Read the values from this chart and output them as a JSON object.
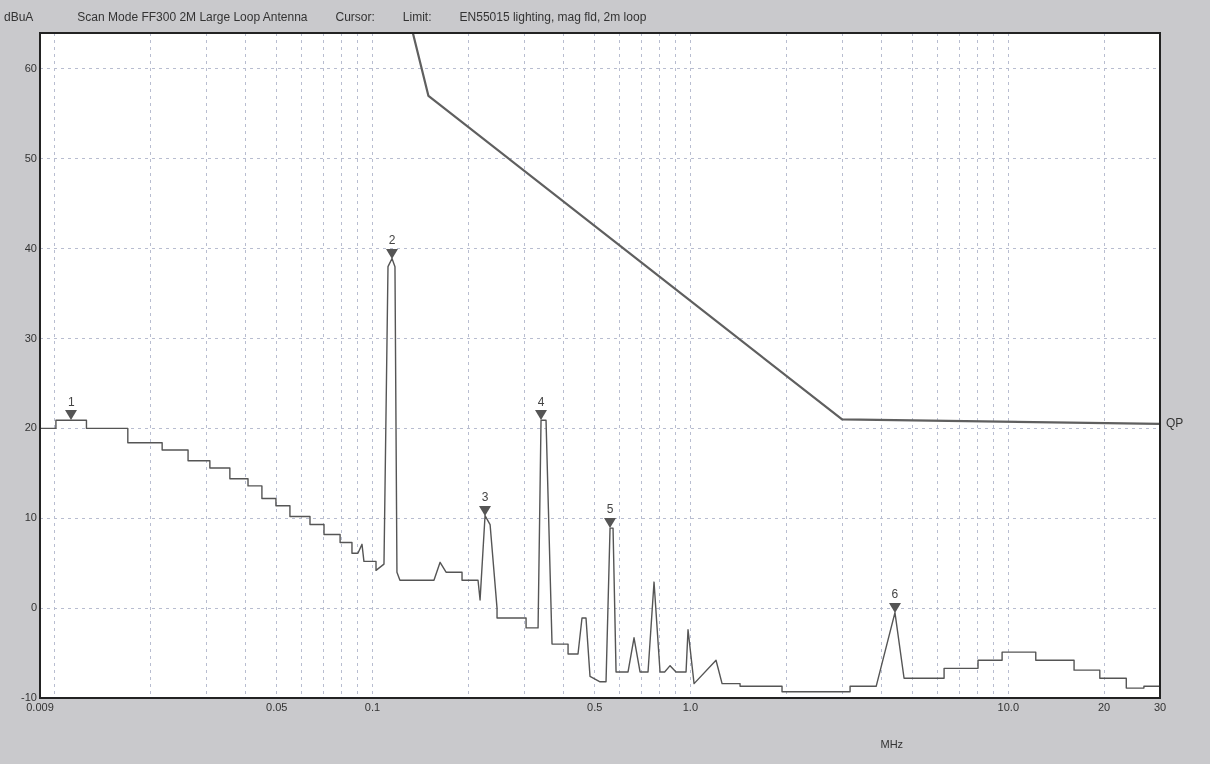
{
  "chart_data": {
    "type": "line",
    "title": "Scan Mode FF300 2M Large Loop Antenna",
    "ylabel": "dBuA",
    "xlabel": "MHz",
    "log": "x",
    "grid": true,
    "legend": false,
    "marker": "none",
    "line_style": "solid",
    "annotations": [
      "Cursor:",
      "Limit:",
      "EN55015 lighting, mag fld, 2m loop",
      {
        "text": "1",
        "x": 0.0113,
        "y": 20.9
      },
      {
        "text": "2",
        "x": 0.1152,
        "y": 38.9
      },
      {
        "text": "3",
        "x": 0.226,
        "y": 10.3
      },
      {
        "text": "4",
        "x": 0.339,
        "y": 20.9
      },
      {
        "text": "5",
        "x": 0.5588,
        "y": 8.9
      },
      {
        "text": "6",
        "x": 4.4,
        "y": -0.5
      }
    ],
    "xlim": [
      0.009,
      30
    ],
    "ylim": [
      -10,
      64
    ],
    "xticks": [
      {
        "value": 0.009,
        "label": "0.009"
      },
      {
        "value": 0.01,
        "label": null
      },
      {
        "value": 0.02,
        "label": null
      },
      {
        "value": 0.03,
        "label": null
      },
      {
        "value": 0.04,
        "label": null
      },
      {
        "value": 0.05,
        "label": "0.05"
      },
      {
        "value": 0.06,
        "label": null
      },
      {
        "value": 0.07,
        "label": null
      },
      {
        "value": 0.08,
        "label": null
      },
      {
        "value": 0.09,
        "label": null
      },
      {
        "value": 0.1,
        "label": "0.1"
      },
      {
        "value": 0.2,
        "label": null
      },
      {
        "value": 0.3,
        "label": null
      },
      {
        "value": 0.4,
        "label": null
      },
      {
        "value": 0.5,
        "label": "0.5"
      },
      {
        "value": 0.6,
        "label": null
      },
      {
        "value": 0.7,
        "label": null
      },
      {
        "value": 0.8,
        "label": null
      },
      {
        "value": 0.9,
        "label": null
      },
      {
        "value": 1,
        "label": "1.0"
      },
      {
        "value": 2,
        "label": null
      },
      {
        "value": 3,
        "label": null
      },
      {
        "value": 4,
        "label": null
      },
      {
        "value": 5,
        "label": null
      },
      {
        "value": 6,
        "label": null
      },
      {
        "value": 7,
        "label": null
      },
      {
        "value": 8,
        "label": null
      },
      {
        "value": 9,
        "label": null
      },
      {
        "value": 10,
        "label": "10.0"
      },
      {
        "value": 20,
        "label": "20"
      },
      {
        "value": 30,
        "label": "30"
      }
    ],
    "yticks": [
      -10,
      0,
      10,
      20,
      30,
      40,
      50,
      60
    ],
    "series": [
      {
        "color": "#555555",
        "x": [
          0.009,
          0.0101,
          0.0101,
          0.0126,
          0.0126,
          0.017,
          0.017,
          0.0218,
          0.0218,
          0.0263,
          0.0263,
          0.0308,
          0.0308,
          0.0356,
          0.0356,
          0.0406,
          0.0406,
          0.0449,
          0.0449,
          0.0497,
          0.0497,
          0.055,
          0.055,
          0.0636,
          0.0636,
          0.0704,
          0.0704,
          0.0791,
          0.0791,
          0.0862,
          0.0862,
          0.09,
          0.0927,
          0.094,
          0.1026,
          0.1026,
          0.1087,
          0.1119,
          0.1152,
          0.1177,
          0.1194,
          0.122,
          0.1561,
          0.1632,
          0.1704,
          0.1913,
          0.1913,
          0.2148,
          0.218,
          0.226,
          0.2344,
          0.2465,
          0.2465,
          0.3042,
          0.3042,
          0.3318,
          0.339,
          0.3515,
          0.3671,
          0.4123,
          0.4123,
          0.4431,
          0.4561,
          0.4695,
          0.4834,
          0.5198,
          0.5428,
          0.5588,
          0.5711,
          0.5837,
          0.6366,
          0.6648,
          0.6944,
          0.7358,
          0.7685,
          0.8027,
          0.83,
          0.8631,
          0.901,
          0.969,
          0.983,
          1.027,
          1.204,
          1.258,
          1.433,
          1.433,
          1.942,
          1.942,
          3.179,
          3.179,
          3.84,
          4.4,
          4.7,
          6.28,
          6.28,
          8.03,
          8.03,
          9.56,
          9.56,
          12.2,
          12.2,
          16.1,
          16.1,
          19.4,
          19.4,
          23.5,
          23.5,
          26.7,
          26.7,
          30
        ],
        "values": [
          20,
          20,
          20.9,
          20.9,
          20,
          20,
          18.4,
          18.4,
          17.6,
          17.6,
          16.4,
          16.4,
          15.6,
          15.6,
          14.4,
          14.4,
          13.6,
          13.6,
          12.2,
          12.2,
          11.4,
          11.4,
          10.2,
          10.2,
          9.3,
          9.3,
          8.2,
          8.2,
          7.3,
          7.3,
          6.1,
          6.1,
          7.1,
          5.2,
          5.2,
          4.2,
          4.9,
          38,
          38.9,
          38,
          4,
          3.1,
          3.1,
          5.1,
          4,
          4,
          3.1,
          3.1,
          0.9,
          10.3,
          9.3,
          0,
          -1.1,
          -1.1,
          -2.2,
          -2.2,
          20.9,
          20.9,
          -4,
          -4,
          -5.1,
          -5.1,
          -1.1,
          -1.1,
          -7.6,
          -8.2,
          -8.2,
          8.9,
          8.9,
          -7.1,
          -7.1,
          -3.3,
          -7.1,
          -7.1,
          2.9,
          -7.1,
          -7.1,
          -6.4,
          -7.1,
          -7.1,
          -2.4,
          -8.4,
          -5.8,
          -8.4,
          -8.4,
          -8.7,
          -8.7,
          -9.3,
          -9.3,
          -8.7,
          -8.7,
          -0.5,
          -7.8,
          -7.8,
          -6.7,
          -6.7,
          -5.8,
          -5.8,
          -4.9,
          -4.9,
          -5.8,
          -5.8,
          -6.9,
          -6.9,
          -7.8,
          -7.8,
          -8.9,
          -8.9,
          -8.7,
          -8.7
        ]
      },
      {
        "name": "QP",
        "color": "#5f5f5f",
        "x": [
          0.134,
          0.15,
          3.0,
          30
        ],
        "values": [
          64,
          57,
          21,
          20.5
        ]
      }
    ]
  }
}
